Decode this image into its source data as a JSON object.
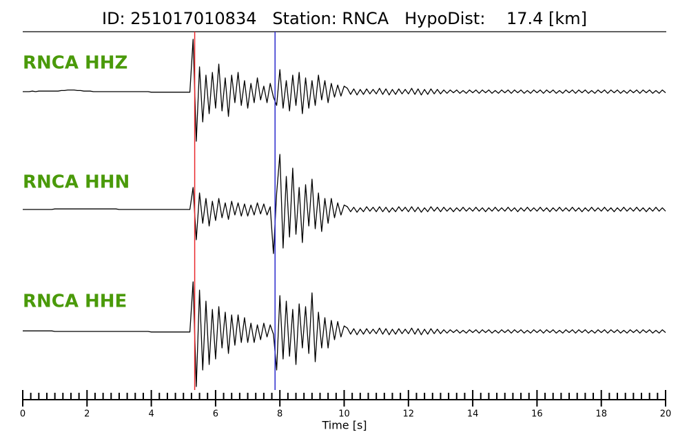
{
  "chart_data": {
    "type": "seismogram",
    "title": "ID: 251017010834   Station: RNCA   HypoDist:    17.4 [km]",
    "xlabel": "Time [s]",
    "xlim": [
      0,
      20
    ],
    "xticks": [
      0,
      2,
      4,
      6,
      8,
      10,
      12,
      14,
      16,
      18,
      20
    ],
    "xminorticks": [
      0.25,
      0.5,
      0.75,
      1,
      1.25,
      1.5,
      1.75,
      2.25,
      2.5,
      2.75,
      3,
      3.25,
      3.5,
      3.75,
      4.25,
      4.5,
      4.75,
      5,
      5.25,
      5.5,
      5.75,
      6.25,
      6.5,
      6.75,
      7,
      7.25,
      7.5,
      7.75,
      8.25,
      8.5,
      8.75,
      9,
      9.25,
      9.5,
      9.75,
      10.25,
      10.5,
      10.75,
      11,
      11.25,
      11.5,
      11.75,
      12.25,
      12.5,
      12.75,
      13,
      13.25,
      13.5,
      13.75,
      14.25,
      14.5,
      14.75,
      15,
      15.25,
      15.5,
      15.75,
      16.25,
      16.5,
      16.75,
      17,
      17.25,
      17.5,
      17.75,
      18.25,
      18.5,
      18.75,
      19,
      19.25,
      19.5,
      19.75
    ],
    "amplitude_lim": [
      -1,
      1
    ],
    "picks": [
      {
        "time": 5.35,
        "color": "#e8262a"
      },
      {
        "time": 7.85,
        "color": "#2a2acc"
      }
    ],
    "x": [
      0,
      0.1,
      0.2,
      0.3,
      0.4,
      0.5,
      0.6,
      0.7,
      0.8,
      0.9,
      1,
      1.1,
      1.2,
      1.3,
      1.4,
      1.5,
      1.6,
      1.7,
      1.8,
      1.9,
      2,
      2.1,
      2.2,
      2.3,
      2.4,
      2.5,
      2.6,
      2.7,
      2.8,
      2.9,
      3,
      3.1,
      3.2,
      3.3,
      3.4,
      3.5,
      3.6,
      3.7,
      3.8,
      3.9,
      4,
      4.1,
      4.2,
      4.3,
      4.4,
      4.5,
      4.6,
      4.7,
      4.8,
      4.9,
      5,
      5.1,
      5.2,
      5.3,
      5.4,
      5.5,
      5.6,
      5.7,
      5.8,
      5.9,
      6,
      6.1,
      6.2,
      6.3,
      6.4,
      6.5,
      6.6,
      6.7,
      6.8,
      6.9,
      7,
      7.1,
      7.2,
      7.3,
      7.4,
      7.5,
      7.6,
      7.7,
      7.8,
      7.9,
      8,
      8.1,
      8.2,
      8.3,
      8.4,
      8.5,
      8.6,
      8.7,
      8.8,
      8.9,
      9,
      9.1,
      9.2,
      9.3,
      9.4,
      9.5,
      9.6,
      9.7,
      9.8,
      9.9,
      10,
      10.1,
      10.2,
      10.3,
      10.4,
      10.5,
      10.6,
      10.7,
      10.8,
      10.9,
      11,
      11.1,
      11.2,
      11.3,
      11.4,
      11.5,
      11.6,
      11.7,
      11.8,
      11.9,
      12,
      12.1,
      12.2,
      12.3,
      12.4,
      12.5,
      12.6,
      12.7,
      12.8,
      12.9,
      13,
      13.1,
      13.2,
      13.3,
      13.4,
      13.5,
      13.6,
      13.7,
      13.8,
      13.9,
      14,
      14.1,
      14.2,
      14.3,
      14.4,
      14.5,
      14.6,
      14.7,
      14.8,
      14.9,
      15,
      15.1,
      15.2,
      15.3,
      15.4,
      15.5,
      15.6,
      15.7,
      15.8,
      15.9,
      16,
      16.1,
      16.2,
      16.3,
      16.4,
      16.5,
      16.6,
      16.7,
      16.8,
      16.9,
      17,
      17.1,
      17.2,
      17.3,
      17.4,
      17.5,
      17.6,
      17.7,
      17.8,
      17.9,
      18,
      18.1,
      18.2,
      18.3,
      18.4,
      18.5,
      18.6,
      18.7,
      18.8,
      18.9,
      19,
      19.1,
      19.2,
      19.3,
      19.4,
      19.5,
      19.6,
      19.7,
      19.8,
      19.9,
      20
    ],
    "series": [
      {
        "name": "RNCA HHZ",
        "color": "#000000",
        "values": [
          0,
          0,
          0,
          0.01,
          0,
          0.01,
          0.01,
          0.01,
          0.01,
          0.01,
          0.01,
          0.01,
          0.02,
          0.02,
          0.03,
          0.03,
          0.03,
          0.02,
          0.02,
          0.01,
          0.01,
          0.01,
          0,
          0,
          0,
          0,
          0,
          0,
          0,
          0,
          0,
          0,
          0,
          0,
          0,
          0,
          0,
          0,
          0,
          0,
          -0.01,
          -0.01,
          -0.01,
          -0.01,
          -0.01,
          -0.01,
          -0.01,
          -0.01,
          -0.01,
          -0.01,
          -0.01,
          -0.01,
          -0.01,
          0.95,
          -0.9,
          0.45,
          -0.55,
          0.3,
          -0.4,
          0.35,
          -0.3,
          0.5,
          -0.35,
          0.25,
          -0.45,
          0.3,
          -0.2,
          0.35,
          -0.25,
          0.2,
          -0.3,
          0.15,
          -0.2,
          0.25,
          -0.15,
          0.1,
          -0.2,
          0.15,
          -0.1,
          -0.25,
          0.4,
          -0.3,
          0.2,
          -0.35,
          0.3,
          -0.25,
          0.35,
          -0.4,
          0.25,
          -0.3,
          0.2,
          -0.25,
          0.3,
          -0.15,
          0.2,
          -0.2,
          0.15,
          -0.1,
          0.12,
          -0.08,
          0.1,
          0.06,
          -0.05,
          0.05,
          -0.06,
          0.04,
          -0.05,
          0.05,
          -0.04,
          0.04,
          -0.04,
          0.06,
          -0.05,
          0.05,
          -0.06,
          0.04,
          -0.05,
          0.05,
          -0.04,
          0.04,
          -0.04,
          0.06,
          -0.05,
          0.05,
          -0.06,
          0.04,
          -0.05,
          0.05,
          -0.04,
          0.04,
          -0.04,
          0.03,
          -0.03,
          0.03,
          -0.02,
          0.03,
          -0.03,
          0.02,
          -0.03,
          0.03,
          -0.02,
          0.03,
          -0.03,
          0.03,
          -0.02,
          0.03,
          -0.03,
          0.02,
          -0.03,
          0.03,
          -0.02,
          0.03,
          -0.03,
          0.03,
          -0.02,
          0.03,
          -0.03,
          0.02,
          -0.03,
          0.03,
          -0.02,
          0.03,
          -0.03,
          0.03,
          -0.02,
          0.03,
          -0.03,
          0.02,
          -0.03,
          0.03,
          -0.02,
          0.03,
          -0.03,
          0.03,
          -0.02,
          0.03,
          -0.03,
          0.02,
          -0.03,
          0.03,
          -0.02,
          0.03,
          -0.03,
          0.03,
          -0.02,
          0.03,
          -0.03,
          0.02,
          -0.03,
          0.03,
          -0.02,
          0.03,
          -0.03,
          0.03,
          -0.02,
          0.03,
          -0.03,
          0.02,
          -0.03,
          0.03,
          -0.02
        ]
      },
      {
        "name": "RNCA HHN",
        "color": "#000000",
        "values": [
          0,
          0,
          0,
          0,
          0,
          0,
          0,
          0,
          0,
          0,
          0.01,
          0.01,
          0.01,
          0.01,
          0.01,
          0.01,
          0.01,
          0.01,
          0.01,
          0.01,
          0.01,
          0.01,
          0.01,
          0.01,
          0.01,
          0.01,
          0.01,
          0.01,
          0.01,
          0.01,
          0,
          0,
          0,
          0,
          0,
          0,
          0,
          0,
          0,
          0,
          0,
          0,
          0,
          0,
          0,
          0,
          0,
          0,
          0,
          0,
          0,
          0,
          0,
          0.4,
          -0.55,
          0.3,
          -0.25,
          0.2,
          -0.3,
          0.15,
          -0.2,
          0.2,
          -0.15,
          0.12,
          -0.18,
          0.15,
          -0.1,
          0.12,
          -0.12,
          0.1,
          -0.12,
          0.08,
          -0.1,
          0.12,
          -0.08,
          0.1,
          -0.1,
          0.05,
          -0.8,
          0.3,
          1.0,
          -0.7,
          0.6,
          -0.5,
          0.75,
          -0.45,
          0.4,
          -0.6,
          0.45,
          -0.3,
          0.55,
          -0.35,
          0.3,
          -0.4,
          0.2,
          -0.25,
          0.2,
          -0.15,
          0.12,
          -0.1,
          0.08,
          0.05,
          -0.04,
          0.04,
          -0.05,
          0.03,
          -0.04,
          0.05,
          -0.03,
          0.04,
          -0.04,
          0.05,
          -0.04,
          0.04,
          -0.05,
          0.03,
          -0.04,
          0.05,
          -0.03,
          0.04,
          -0.04,
          0.05,
          -0.04,
          0.04,
          -0.05,
          0.03,
          -0.04,
          0.05,
          -0.03,
          0.04,
          -0.04,
          0.04,
          -0.03,
          0.03,
          -0.04,
          0.03,
          -0.03,
          0.04,
          -0.03,
          0.03,
          -0.03,
          0.04,
          -0.03,
          0.03,
          -0.04,
          0.03,
          -0.03,
          0.04,
          -0.03,
          0.03,
          -0.03,
          0.04,
          -0.03,
          0.03,
          -0.04,
          0.03,
          -0.03,
          0.04,
          -0.03,
          0.03,
          -0.03,
          0.04,
          -0.03,
          0.03,
          -0.04,
          0.03,
          -0.03,
          0.04,
          -0.03,
          0.03,
          -0.03,
          0.04,
          -0.03,
          0.03,
          -0.04,
          0.03,
          -0.03,
          0.04,
          -0.03,
          0.03,
          -0.03,
          0.04,
          -0.03,
          0.03,
          -0.04,
          0.03,
          -0.03,
          0.04,
          -0.03,
          0.03,
          -0.03,
          0.04,
          -0.03,
          0.03,
          -0.04,
          0.03,
          -0.03,
          0.04,
          -0.03,
          0.03,
          -0.03
        ]
      },
      {
        "name": "RNCA HHE",
        "color": "#000000",
        "values": [
          0.01,
          0.01,
          0.01,
          0.01,
          0.01,
          0.01,
          0.01,
          0.01,
          0.01,
          0.01,
          0,
          0,
          0,
          0,
          0,
          0,
          0,
          0,
          0,
          0,
          0,
          0,
          0,
          0,
          0,
          0,
          0,
          0,
          0,
          0,
          0,
          0,
          0,
          0,
          0,
          0,
          0,
          0,
          0,
          0,
          -0.01,
          -0.01,
          -0.01,
          -0.01,
          -0.01,
          -0.01,
          -0.01,
          -0.01,
          -0.01,
          -0.01,
          -0.01,
          -0.01,
          -0.01,
          0.9,
          -1.0,
          0.75,
          -0.7,
          0.55,
          -0.6,
          0.4,
          -0.5,
          0.45,
          -0.3,
          0.35,
          -0.4,
          0.3,
          -0.25,
          0.3,
          -0.2,
          0.25,
          -0.2,
          0.15,
          -0.2,
          0.12,
          -0.15,
          0.15,
          -0.1,
          0.12,
          -0.05,
          -0.7,
          0.65,
          -0.5,
          0.55,
          -0.45,
          0.4,
          -0.6,
          0.5,
          -0.3,
          0.45,
          -0.4,
          0.7,
          -0.55,
          0.35,
          -0.3,
          0.25,
          -0.3,
          0.2,
          -0.15,
          0.18,
          -0.1,
          0.1,
          0.06,
          -0.05,
          0.05,
          -0.06,
          0.04,
          -0.05,
          0.05,
          -0.04,
          0.04,
          -0.04,
          0.06,
          -0.05,
          0.05,
          -0.06,
          0.04,
          -0.05,
          0.05,
          -0.04,
          0.04,
          -0.04,
          0.06,
          -0.05,
          0.05,
          -0.06,
          0.04,
          -0.05,
          0.05,
          -0.04,
          0.04,
          -0.04,
          0.03,
          -0.03,
          0.03,
          -0.02,
          0.03,
          -0.03,
          0.02,
          -0.03,
          0.03,
          -0.02,
          0.03,
          -0.03,
          0.03,
          -0.02,
          0.03,
          -0.03,
          0.02,
          -0.03,
          0.03,
          -0.02,
          0.03,
          -0.03,
          0.03,
          -0.02,
          0.03,
          -0.03,
          0.02,
          -0.03,
          0.03,
          -0.02,
          0.03,
          -0.03,
          0.03,
          -0.02,
          0.03,
          -0.03,
          0.02,
          -0.03,
          0.03,
          -0.02,
          0.03,
          -0.03,
          0.03,
          -0.02,
          0.03,
          -0.03,
          0.02,
          -0.03,
          0.03,
          -0.02,
          0.03,
          -0.03,
          0.03,
          -0.02,
          0.03,
          -0.03,
          0.02,
          -0.03,
          0.03,
          -0.02,
          0.03,
          -0.03,
          0.03,
          -0.02,
          0.03,
          -0.03,
          0.02,
          -0.03,
          0.03,
          -0.02
        ]
      }
    ]
  }
}
